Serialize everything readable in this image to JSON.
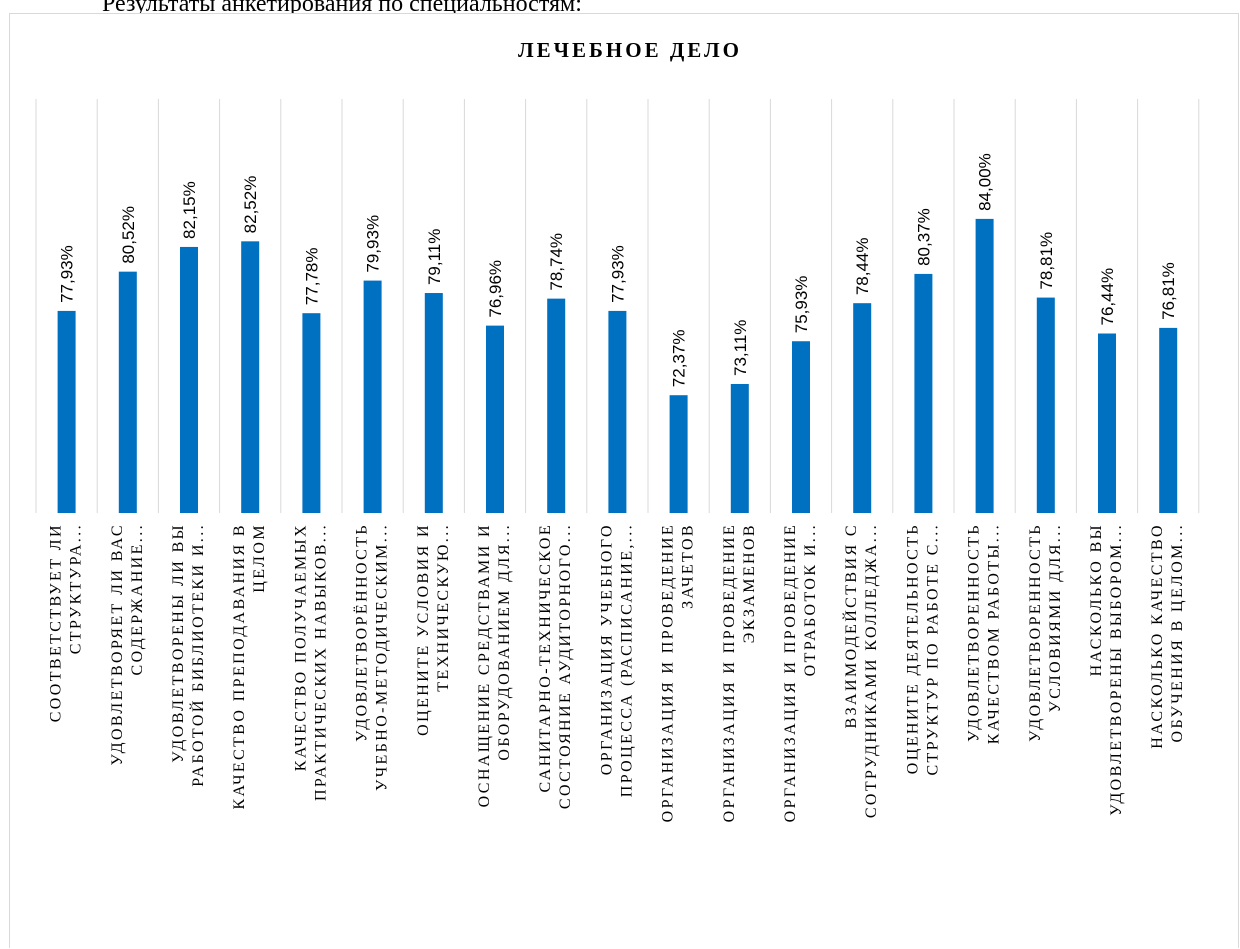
{
  "page": {
    "heading": "Результаты анкетирования по специальностям:"
  },
  "chart_data": {
    "type": "bar",
    "title": "ЛЕЧЕБНОЕ ДЕЛО",
    "xlabel": "",
    "ylabel": "",
    "ylim": [
      60,
      86
    ],
    "grid": "vertical-category-lines",
    "bar_color": "#0070C0",
    "categories": [
      [
        "СООТВЕТСТВУЕТ ЛИ",
        "СТРУКТУРА..."
      ],
      [
        "УДОВЛЕТВОРЯЕТ ЛИ ВАС",
        "СОДЕРЖАНИЕ..."
      ],
      [
        "УДОВЛЕТВОРЕНЫ ЛИ ВЫ",
        "РАБОТОЙ  БИБЛИОТЕКИ И..."
      ],
      [
        "КАЧЕСТВО ПРЕПОДАВАНИЯ В",
        "ЦЕЛОМ"
      ],
      [
        "КАЧЕСТВО ПОЛУЧАЕМЫХ",
        "ПРАКТИЧЕСКИХ НАВЫКОВ..."
      ],
      [
        "УДОВЛЕТВОРЁННОСТЬ",
        "УЧЕБНО-МЕТОДИЧЕСКИМ..."
      ],
      [
        "ОЦЕНИТЕ УСЛОВИЯ И",
        "ТЕХНИЧЕСКУЮ..."
      ],
      [
        "ОСНАЩЕНИЕ СРЕДСТВАМИ И",
        "ОБОРУДОВАНИЕМ ДЛЯ..."
      ],
      [
        "САНИТАРНО-ТЕХНИЧЕСКОЕ",
        "СОСТОЯНИЕ АУДИТОРНОГО..."
      ],
      [
        "ОРГАНИЗАЦИЯ УЧЕБНОГО",
        "ПРОЦЕССА (РАСПИСАНИЕ,..."
      ],
      [
        "ОРГАНИЗАЦИЯ И ПРОВЕДЕНИЕ",
        "ЗАЧЕТОВ"
      ],
      [
        "ОРГАНИЗАЦИЯ И ПРОВЕДЕНИЕ",
        "ЭКЗАМЕНОВ"
      ],
      [
        "ОРГАНИЗАЦИЯ И ПРОВЕДЕНИЕ",
        "ОТРАБОТОК И..."
      ],
      [
        "ВЗАИМОДЕЙСТВИЯ С",
        "СОТРУДНИКАМИ КОЛЛЕДЖА..."
      ],
      [
        "ОЦЕНИТЕ ДЕЯТЕЛЬНОСТЬ",
        "СТРУКТУР ПО РАБОТЕ С..."
      ],
      [
        "УДОВЛЕТВОРЕННОСТЬ",
        "КАЧЕСТВОМ РАБОТЫ..."
      ],
      [
        "УДОВЛЕТВОРЕННОСТЬ",
        "УСЛОВИЯМИ ДЛЯ..."
      ],
      [
        "НАСКОЛЬКО ВЫ",
        "УДОВЛЕТВОРЕНЫ ВЫБОРОМ..."
      ],
      [
        "НАСКОЛЬКО КАЧЕСТВО",
        "ОБУЧЕНИЯ В ЦЕЛОМ..."
      ]
    ],
    "values": [
      77.93,
      80.52,
      82.15,
      82.52,
      77.78,
      79.93,
      79.11,
      76.96,
      78.74,
      77.93,
      72.37,
      73.11,
      75.93,
      78.44,
      80.37,
      84.0,
      78.81,
      76.44,
      76.81
    ],
    "value_labels": [
      "77,93%",
      "80,52%",
      "82,15%",
      "82,52%",
      "77,78%",
      "79,93%",
      "79,11%",
      "76,96%",
      "78,74%",
      "77,93%",
      "72,37%",
      "73,11%",
      "75,93%",
      "78,44%",
      "80,37%",
      "84,00%",
      "78,81%",
      "76,44%",
      "76,81%"
    ]
  }
}
